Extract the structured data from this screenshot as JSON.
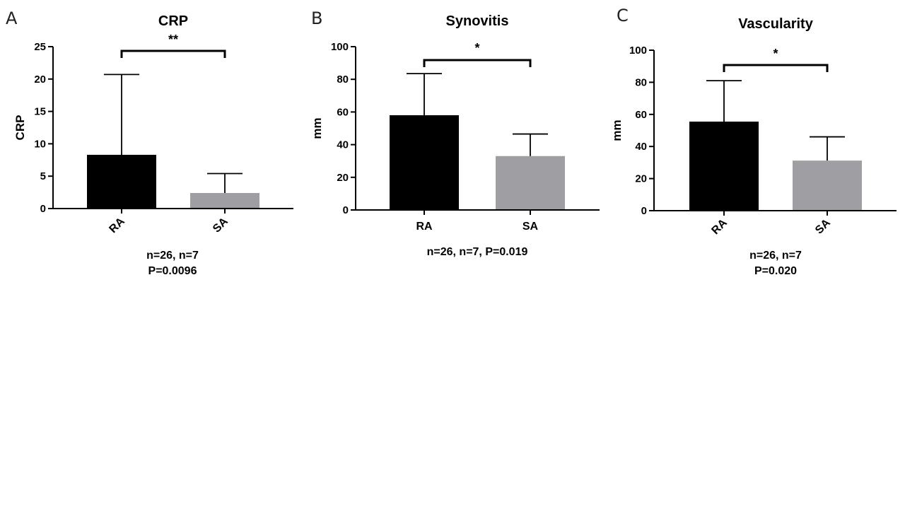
{
  "chart_data": [
    {
      "type": "bar",
      "panel": "A",
      "title": "CRP",
      "ylabel": "CRP",
      "xlabel": "",
      "ylim": [
        0,
        25
      ],
      "yticks": [
        0,
        5,
        10,
        15,
        20,
        25
      ],
      "ytick_labels": [
        "0",
        "5",
        "10",
        "15",
        "20",
        "25"
      ],
      "categories": [
        "RA",
        "SA"
      ],
      "values": [
        8.3,
        2.4
      ],
      "error_upper": [
        20.7,
        5.4
      ],
      "colors": [
        "#000000",
        "#9e9ea3"
      ],
      "significance": "**",
      "notes": [
        "n=26, n=7",
        "P=0.0096"
      ],
      "rotate_labels": true
    },
    {
      "type": "bar",
      "panel": "B",
      "title": "Synovitis",
      "ylabel": "mm",
      "xlabel": "",
      "ylim": [
        0,
        100
      ],
      "yticks": [
        0,
        20,
        40,
        60,
        80,
        100
      ],
      "ytick_labels": [
        "0",
        "20",
        "40",
        "60",
        "80",
        "100"
      ],
      "categories": [
        "RA",
        "SA"
      ],
      "values": [
        58,
        33
      ],
      "error_upper": [
        83.5,
        46.5
      ],
      "colors": [
        "#000000",
        "#9e9ea3"
      ],
      "significance": "*",
      "notes": [
        "n=26, n=7, P=0.019"
      ],
      "rotate_labels": false
    },
    {
      "type": "bar",
      "panel": "C",
      "title": "Vascularity",
      "ylabel": "mm",
      "xlabel": "",
      "ylim": [
        0,
        100
      ],
      "yticks": [
        0,
        20,
        40,
        60,
        80,
        100
      ],
      "ytick_labels": [
        "0",
        "20",
        "40",
        "60",
        "80",
        "100"
      ],
      "categories": [
        "RA",
        "SA"
      ],
      "values": [
        55.5,
        31.2
      ],
      "error_upper": [
        81,
        46
      ],
      "colors": [
        "#000000",
        "#9e9ea3"
      ],
      "significance": "*",
      "notes": [
        "n=26, n=7",
        "P=0.020"
      ],
      "rotate_labels": true
    }
  ]
}
